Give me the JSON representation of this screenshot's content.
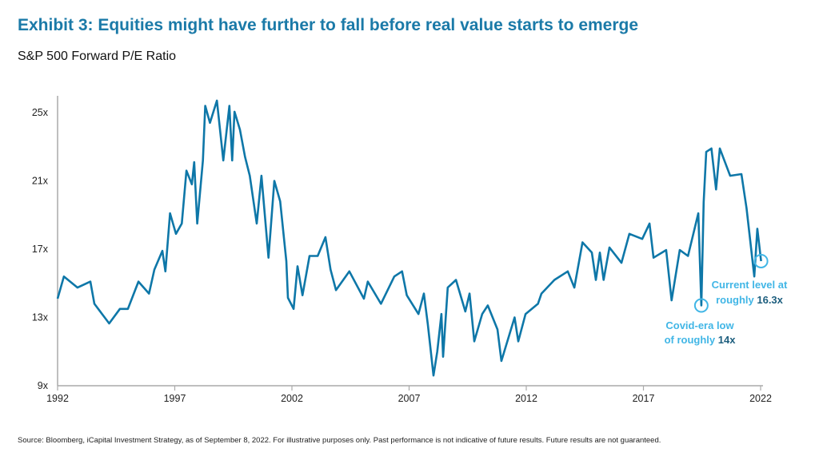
{
  "title": "Exhibit 3: Equities might have further to fall before real value starts to emerge",
  "subtitle": "S&P 500 Forward P/E Ratio",
  "source": "Source: Bloomberg, iCapital Investment Strategy, as of September 8, 2022. For illustrative purposes only. Past performance is not indicative of future results. Future results are not guaranteed.",
  "colors": {
    "title": "#1b7aa8",
    "line": "#0e77a8",
    "annotation": "#41b6e6",
    "annotation_value": "#1d5e7e"
  },
  "chart_data": {
    "type": "line",
    "title": "S&P 500 Forward P/E Ratio",
    "xlabel": "",
    "ylabel": "",
    "xlim": [
      1992,
      2022
    ],
    "ylim": [
      9,
      25
    ],
    "x_ticks": [
      1992,
      1997,
      2002,
      2007,
      2012,
      2017,
      2022
    ],
    "x_tick_labels": [
      "1992",
      "1997",
      "2002",
      "2007",
      "2012",
      "2017",
      "2022"
    ],
    "y_ticks": [
      9,
      13,
      17,
      21,
      25
    ],
    "y_tick_labels": [
      "9x",
      "13x",
      "17x",
      "21x",
      "25x"
    ],
    "grid": false,
    "legend": "none",
    "series": [
      {
        "x": [
          1992.0,
          1992.27,
          1992.85,
          1993.4,
          1993.57,
          1994.2,
          1994.66,
          1995.0,
          1995.45,
          1995.9,
          1996.13,
          1996.47,
          1996.6,
          1996.8,
          1997.05,
          1997.3,
          1997.5,
          1997.73,
          1997.83,
          1997.96,
          1998.2,
          1998.3,
          1998.5,
          1998.8,
          1999.07,
          1999.33,
          1999.45,
          1999.55,
          1999.78,
          2000.0,
          2000.2,
          2000.5,
          2000.7,
          2001.0,
          2001.25,
          2001.5,
          2001.76,
          2001.83,
          2002.07,
          2002.24,
          2002.45,
          2002.75,
          2003.1,
          2003.43,
          2003.65,
          2003.88,
          2004.45,
          2005.07,
          2005.24,
          2005.8,
          2006.37,
          2006.7,
          2006.9,
          2007.4,
          2007.63,
          2007.8,
          2008.04,
          2008.2,
          2008.38,
          2008.45,
          2008.65,
          2009.0,
          2009.4,
          2009.58,
          2009.78,
          2010.12,
          2010.36,
          2010.77,
          2010.94,
          2011.5,
          2011.66,
          2011.97,
          2012.5,
          2012.65,
          2013.2,
          2013.77,
          2014.05,
          2014.4,
          2014.8,
          2014.97,
          2015.14,
          2015.3,
          2015.55,
          2016.06,
          2016.4,
          2016.95,
          2017.26,
          2017.43,
          2017.97,
          2018.2,
          2018.55,
          2018.9,
          2019.34,
          2019.47,
          2019.57,
          2019.68,
          2019.9,
          2020.1,
          2020.26,
          2020.7,
          2021.18,
          2021.4,
          2021.73,
          2021.86,
          2022.02
        ],
        "values": [
          14.1,
          15.4,
          14.75,
          15.1,
          13.8,
          12.65,
          13.5,
          13.5,
          15.1,
          14.4,
          15.8,
          16.9,
          15.7,
          19.1,
          17.9,
          18.5,
          21.6,
          20.8,
          22.1,
          18.5,
          22.2,
          25.4,
          24.4,
          25.7,
          22.2,
          25.4,
          22.2,
          25.05,
          24.0,
          22.4,
          21.3,
          18.5,
          21.3,
          16.5,
          21.0,
          19.8,
          16.3,
          14.15,
          13.5,
          16.0,
          14.3,
          16.6,
          16.6,
          17.7,
          15.8,
          14.6,
          15.7,
          14.1,
          15.1,
          13.8,
          15.4,
          15.7,
          14.3,
          13.2,
          14.4,
          12.6,
          9.6,
          11.0,
          13.2,
          10.7,
          14.75,
          15.2,
          13.35,
          14.4,
          11.6,
          13.2,
          13.7,
          12.3,
          10.45,
          13.0,
          11.6,
          13.2,
          13.8,
          14.4,
          15.2,
          15.7,
          14.75,
          17.4,
          16.8,
          15.2,
          16.8,
          15.2,
          17.1,
          16.2,
          17.9,
          17.6,
          18.5,
          16.5,
          16.95,
          14.0,
          16.95,
          16.6,
          19.1,
          13.7,
          19.75,
          22.7,
          22.9,
          20.5,
          22.9,
          21.3,
          21.4,
          19.4,
          15.4,
          18.2,
          16.3
        ]
      }
    ],
    "annotations": [
      {
        "line1": "Covid-era low",
        "line2_prefix": "of roughly ",
        "value": "14x",
        "x": 2019.47,
        "y": 13.7
      },
      {
        "line1": "Current level at",
        "line2_prefix": "roughly ",
        "value": "16.3x",
        "x": 2022.02,
        "y": 16.3
      }
    ]
  }
}
